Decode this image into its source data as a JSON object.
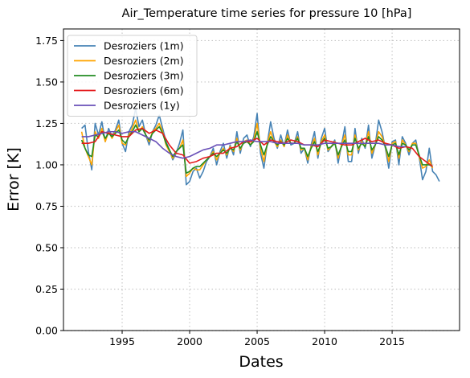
{
  "chart_data": {
    "type": "line",
    "title": "Air_Temperature time series for pressure 10 [hPa]",
    "xlabel": "Dates",
    "ylabel": "Error [K]",
    "xlim": [
      1990.8,
      1991.2
    ],
    "ylim": [
      0.0,
      1.82
    ],
    "xticks": [
      1995,
      2000,
      2005,
      2010,
      2015
    ],
    "xtick_labels": [
      "1995",
      "2000",
      "2005",
      "2010",
      "2015"
    ],
    "yticks": [
      0.0,
      0.25,
      0.5,
      0.75,
      1.0,
      1.25,
      1.5,
      1.75
    ],
    "ytick_labels": [
      "0.00",
      "0.25",
      "0.50",
      "0.75",
      "1.00",
      "1.25",
      "1.50",
      "1.75"
    ],
    "grid": true,
    "legend_position": "top-left",
    "series": [
      {
        "name": "Desroziers (1m)",
        "color": "#4682b4",
        "x": [
          1992.0,
          1992.25,
          1992.5,
          1992.75,
          1993.0,
          1993.25,
          1993.5,
          1993.75,
          1994.0,
          1994.25,
          1994.5,
          1994.75,
          1995.0,
          1995.25,
          1995.5,
          1995.75,
          1996.0,
          1996.25,
          1996.5,
          1996.75,
          1997.0,
          1997.25,
          1997.5,
          1997.75,
          1998.0,
          1998.25,
          1998.5,
          1998.75,
          1999.0,
          1999.25,
          1999.5,
          1999.75,
          2000.0,
          2000.25,
          2000.5,
          2000.75,
          2001.0,
          2001.25,
          2001.5,
          2001.75,
          2002.0,
          2002.25,
          2002.5,
          2002.75,
          2003.0,
          2003.25,
          2003.5,
          2003.75,
          2004.0,
          2004.25,
          2004.5,
          2004.75,
          2005.0,
          2005.25,
          2005.5,
          2005.75,
          2006.0,
          2006.25,
          2006.5,
          2006.75,
          2007.0,
          2007.25,
          2007.5,
          2007.75,
          2008.0,
          2008.25,
          2008.5,
          2008.75,
          2009.0,
          2009.25,
          2009.5,
          2009.75,
          2010.0,
          2010.25,
          2010.5,
          2010.75,
          2011.0,
          2011.25,
          2011.5,
          2011.75,
          2012.0,
          2012.25,
          2012.5,
          2012.75,
          2013.0,
          2013.25,
          2013.5,
          2013.75,
          2014.0,
          2014.25,
          2014.5,
          2014.75,
          2015.0,
          2015.25,
          2015.5,
          2015.75,
          2016.0,
          2016.25,
          2016.5,
          2016.75,
          2017.0,
          2017.25,
          2017.5,
          2017.75,
          2018.0,
          2018.25,
          2018.5
        ],
        "values": [
          1.22,
          1.24,
          1.08,
          0.97,
          1.25,
          1.18,
          1.26,
          1.14,
          1.22,
          1.17,
          1.21,
          1.27,
          1.13,
          1.08,
          1.2,
          1.24,
          1.34,
          1.23,
          1.27,
          1.18,
          1.12,
          1.2,
          1.24,
          1.3,
          1.22,
          1.14,
          1.09,
          1.03,
          1.07,
          1.13,
          1.21,
          0.88,
          0.9,
          0.96,
          0.98,
          0.92,
          0.96,
          1.02,
          1.05,
          1.1,
          1.0,
          1.08,
          1.13,
          1.04,
          1.12,
          1.06,
          1.2,
          1.07,
          1.16,
          1.18,
          1.11,
          1.17,
          1.31,
          1.07,
          0.98,
          1.13,
          1.26,
          1.16,
          1.1,
          1.18,
          1.11,
          1.21,
          1.12,
          1.13,
          1.2,
          1.07,
          1.1,
          1.01,
          1.12,
          1.2,
          1.04,
          1.16,
          1.22,
          1.08,
          1.11,
          1.15,
          1.01,
          1.12,
          1.23,
          1.02,
          1.02,
          1.22,
          1.07,
          1.16,
          1.1,
          1.24,
          1.04,
          1.12,
          1.27,
          1.2,
          1.1,
          0.98,
          1.14,
          1.15,
          1.0,
          1.17,
          1.13,
          1.06,
          1.13,
          1.15,
          1.05,
          0.91,
          0.96,
          1.1,
          0.96,
          0.94,
          0.9
        ]
      },
      {
        "name": "Desroziers (2m)",
        "color": "#ffa500",
        "x": [
          1992.0,
          1992.25,
          1992.5,
          1992.75,
          1993.0,
          1993.25,
          1993.5,
          1993.75,
          1994.0,
          1994.25,
          1994.5,
          1994.75,
          1995.0,
          1995.25,
          1995.5,
          1995.75,
          1996.0,
          1996.25,
          1996.5,
          1996.75,
          1997.0,
          1997.25,
          1997.5,
          1997.75,
          1998.0,
          1998.25,
          1998.5,
          1998.75,
          1999.0,
          1999.25,
          1999.5,
          1999.75,
          2000.0,
          2000.25,
          2000.5,
          2000.75,
          2001.0,
          2001.25,
          2001.5,
          2001.75,
          2002.0,
          2002.25,
          2002.5,
          2002.75,
          2003.0,
          2003.25,
          2003.5,
          2003.75,
          2004.0,
          2004.25,
          2004.5,
          2004.75,
          2005.0,
          2005.25,
          2005.5,
          2005.75,
          2006.0,
          2006.25,
          2006.5,
          2006.75,
          2007.0,
          2007.25,
          2007.5,
          2007.75,
          2008.0,
          2008.25,
          2008.5,
          2008.75,
          2009.0,
          2009.25,
          2009.5,
          2009.75,
          2010.0,
          2010.25,
          2010.5,
          2010.75,
          2011.0,
          2011.25,
          2011.5,
          2011.75,
          2012.0,
          2012.25,
          2012.5,
          2012.75,
          2013.0,
          2013.25,
          2013.5,
          2013.75,
          2014.0,
          2014.25,
          2014.5,
          2014.75,
          2015.0,
          2015.25,
          2015.5,
          2015.75,
          2016.0,
          2016.25,
          2016.5,
          2016.75,
          2017.0,
          2017.25,
          2017.5,
          2017.75,
          2018.0
        ],
        "values": [
          1.2,
          1.1,
          1.05,
          1.0,
          1.2,
          1.16,
          1.22,
          1.14,
          1.2,
          1.16,
          1.2,
          1.24,
          1.13,
          1.12,
          1.18,
          1.22,
          1.27,
          1.2,
          1.23,
          1.18,
          1.14,
          1.2,
          1.22,
          1.25,
          1.2,
          1.12,
          1.08,
          1.04,
          1.08,
          1.1,
          1.15,
          0.93,
          0.95,
          0.98,
          0.97,
          0.97,
          1.0,
          1.03,
          1.05,
          1.08,
          1.03,
          1.07,
          1.1,
          1.06,
          1.11,
          1.08,
          1.16,
          1.09,
          1.14,
          1.15,
          1.12,
          1.15,
          1.25,
          1.1,
          1.02,
          1.13,
          1.2,
          1.14,
          1.11,
          1.15,
          1.11,
          1.18,
          1.13,
          1.13,
          1.17,
          1.09,
          1.1,
          1.03,
          1.11,
          1.16,
          1.06,
          1.14,
          1.18,
          1.09,
          1.11,
          1.14,
          1.04,
          1.12,
          1.18,
          1.06,
          1.06,
          1.18,
          1.09,
          1.14,
          1.11,
          1.2,
          1.07,
          1.12,
          1.2,
          1.17,
          1.11,
          1.02,
          1.13,
          1.14,
          1.04,
          1.15,
          1.12,
          1.08,
          1.13,
          1.13,
          1.05,
          0.98,
          0.99,
          1.03,
          0.98
        ]
      },
      {
        "name": "Desroziers (3m)",
        "color": "#228b22",
        "x": [
          1992.0,
          1992.25,
          1992.5,
          1992.75,
          1993.0,
          1993.25,
          1993.5,
          1993.75,
          1994.0,
          1994.25,
          1994.5,
          1994.75,
          1995.0,
          1995.25,
          1995.5,
          1995.75,
          1996.0,
          1996.25,
          1996.5,
          1996.75,
          1997.0,
          1997.25,
          1997.5,
          1997.75,
          1998.0,
          1998.25,
          1998.5,
          1998.75,
          1999.0,
          1999.25,
          1999.5,
          1999.75,
          2000.0,
          2000.25,
          2000.5,
          2000.75,
          2001.0,
          2001.25,
          2001.5,
          2001.75,
          2002.0,
          2002.25,
          2002.5,
          2002.75,
          2003.0,
          2003.25,
          2003.5,
          2003.75,
          2004.0,
          2004.25,
          2004.5,
          2004.75,
          2005.0,
          2005.25,
          2005.5,
          2005.75,
          2006.0,
          2006.25,
          2006.5,
          2006.75,
          2007.0,
          2007.25,
          2007.5,
          2007.75,
          2008.0,
          2008.25,
          2008.5,
          2008.75,
          2009.0,
          2009.25,
          2009.5,
          2009.75,
          2010.0,
          2010.25,
          2010.5,
          2010.75,
          2011.0,
          2011.25,
          2011.5,
          2011.75,
          2012.0,
          2012.25,
          2012.5,
          2012.75,
          2013.0,
          2013.25,
          2013.5,
          2013.75,
          2014.0,
          2014.25,
          2014.5,
          2014.75,
          2015.0,
          2015.25,
          2015.5,
          2015.75,
          2016.0,
          2016.25,
          2016.5,
          2016.75,
          2017.0,
          2017.25,
          2017.5,
          2017.75,
          2018.0
        ],
        "values": [
          1.15,
          1.1,
          1.06,
          1.05,
          1.18,
          1.17,
          1.2,
          1.16,
          1.19,
          1.17,
          1.19,
          1.21,
          1.15,
          1.13,
          1.17,
          1.2,
          1.24,
          1.2,
          1.22,
          1.18,
          1.15,
          1.19,
          1.21,
          1.23,
          1.19,
          1.13,
          1.09,
          1.05,
          1.08,
          1.1,
          1.12,
          0.95,
          0.96,
          0.98,
          0.99,
          0.99,
          1.01,
          1.03,
          1.05,
          1.07,
          1.05,
          1.07,
          1.09,
          1.07,
          1.1,
          1.09,
          1.14,
          1.1,
          1.13,
          1.14,
          1.12,
          1.14,
          1.2,
          1.12,
          1.06,
          1.12,
          1.17,
          1.14,
          1.12,
          1.14,
          1.12,
          1.16,
          1.13,
          1.13,
          1.16,
          1.1,
          1.1,
          1.05,
          1.1,
          1.14,
          1.08,
          1.13,
          1.16,
          1.1,
          1.11,
          1.13,
          1.06,
          1.11,
          1.15,
          1.08,
          1.08,
          1.16,
          1.1,
          1.13,
          1.11,
          1.17,
          1.09,
          1.12,
          1.17,
          1.15,
          1.11,
          1.05,
          1.12,
          1.13,
          1.06,
          1.13,
          1.12,
          1.09,
          1.12,
          1.12,
          1.06,
          1.0,
          1.0,
          1.0,
          0.99
        ]
      },
      {
        "name": "Desroziers (6m)",
        "color": "#e41a1c",
        "x": [
          1992.0,
          1992.5,
          1993.0,
          1993.5,
          1994.0,
          1994.5,
          1995.0,
          1995.5,
          1996.0,
          1996.5,
          1997.0,
          1997.5,
          1998.0,
          1998.5,
          1999.0,
          1999.5,
          2000.0,
          2000.5,
          2001.0,
          2001.5,
          2002.0,
          2002.5,
          2003.0,
          2003.5,
          2004.0,
          2004.5,
          2005.0,
          2005.5,
          2006.0,
          2006.5,
          2007.0,
          2007.5,
          2008.0,
          2008.5,
          2009.0,
          2009.5,
          2010.0,
          2010.5,
          2011.0,
          2011.5,
          2012.0,
          2012.5,
          2013.0,
          2013.5,
          2014.0,
          2014.5,
          2015.0,
          2015.5,
          2016.0,
          2016.5,
          2017.0,
          2017.5,
          2018.0
        ],
        "values": [
          1.13,
          1.13,
          1.14,
          1.2,
          1.19,
          1.18,
          1.17,
          1.17,
          1.21,
          1.22,
          1.19,
          1.21,
          1.19,
          1.12,
          1.07,
          1.06,
          1.01,
          1.02,
          1.04,
          1.05,
          1.07,
          1.07,
          1.1,
          1.11,
          1.14,
          1.14,
          1.16,
          1.12,
          1.15,
          1.14,
          1.13,
          1.15,
          1.14,
          1.12,
          1.12,
          1.11,
          1.15,
          1.14,
          1.13,
          1.12,
          1.12,
          1.14,
          1.16,
          1.14,
          1.15,
          1.13,
          1.12,
          1.1,
          1.11,
          1.1,
          1.05,
          1.02,
          0.99
        ]
      },
      {
        "name": "Desroziers (1y)",
        "color": "#6a51b8",
        "x": [
          1992.0,
          1992.5,
          1993.0,
          1993.5,
          1994.0,
          1994.5,
          1995.0,
          1995.5,
          1996.0,
          1996.5,
          1997.0,
          1997.5,
          1998.0,
          1998.5,
          1999.0,
          1999.5,
          2000.0,
          2000.5,
          2001.0,
          2001.5,
          2002.0,
          2002.5,
          2003.0,
          2003.5,
          2004.0,
          2004.5,
          2005.0,
          2005.5,
          2006.0,
          2006.5,
          2007.0,
          2007.5,
          2008.0,
          2008.5,
          2009.0,
          2009.5,
          2010.0,
          2010.5,
          2011.0,
          2011.5,
          2012.0,
          2012.5,
          2013.0,
          2013.5,
          2014.0,
          2014.5,
          2015.0,
          2015.5,
          2016.0
        ],
        "values": [
          1.17,
          1.17,
          1.18,
          1.19,
          1.2,
          1.2,
          1.19,
          1.2,
          1.2,
          1.18,
          1.16,
          1.14,
          1.1,
          1.07,
          1.05,
          1.04,
          1.05,
          1.07,
          1.09,
          1.1,
          1.12,
          1.12,
          1.13,
          1.14,
          1.14,
          1.15,
          1.14,
          1.14,
          1.14,
          1.13,
          1.13,
          1.13,
          1.13,
          1.12,
          1.12,
          1.12,
          1.13,
          1.13,
          1.13,
          1.13,
          1.13,
          1.13,
          1.13,
          1.13,
          1.13,
          1.12,
          1.12,
          1.11,
          1.11
        ]
      }
    ]
  }
}
